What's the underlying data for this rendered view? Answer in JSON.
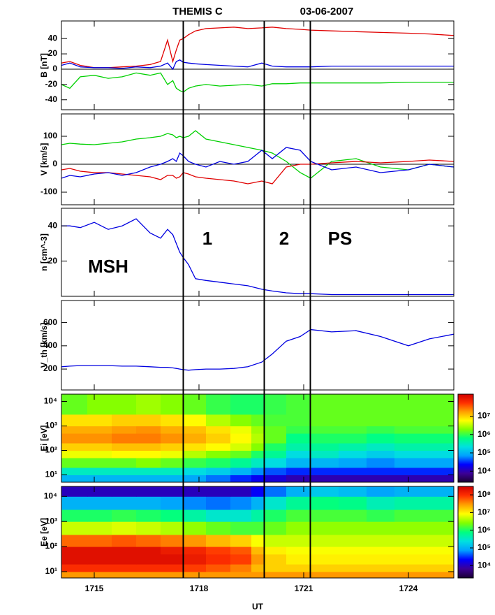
{
  "chart_data": [
    {
      "type": "line",
      "title": "THEMIS C",
      "subtitle": "03-06-2007",
      "ylabel": "B [nT]",
      "x": [
        14.06,
        14.3,
        14.6,
        15.0,
        15.4,
        15.8,
        16.2,
        16.6,
        16.9,
        17.1,
        17.25,
        17.35,
        17.45,
        17.55,
        17.7,
        17.9,
        18.2,
        18.6,
        19.0,
        19.4,
        19.8,
        20.1,
        20.5,
        20.9,
        21.2,
        21.8,
        22.5,
        23.2,
        24.0,
        24.6,
        25.3
      ],
      "xlim": [
        14.06,
        25.3
      ],
      "ylim": [
        -53,
        63
      ],
      "yticks": [
        -40,
        -20,
        0,
        20,
        40
      ],
      "zero_line": true,
      "markers": [
        17.55,
        19.87,
        21.19
      ],
      "series": [
        {
          "color": "#e00000",
          "values": [
            8,
            10,
            5,
            2,
            2,
            3,
            4,
            6,
            10,
            38,
            10,
            25,
            38,
            40,
            45,
            50,
            53,
            54,
            55,
            53,
            54,
            55,
            53,
            52,
            51,
            50,
            49,
            48,
            47,
            46,
            44
          ]
        },
        {
          "color": "#0000e0",
          "values": [
            5,
            8,
            3,
            2,
            2,
            1,
            3,
            2,
            4,
            8,
            0,
            10,
            12,
            9,
            8,
            7,
            6,
            5,
            4,
            3,
            8,
            4,
            3,
            3,
            3,
            4,
            4,
            4,
            4,
            4,
            4
          ]
        },
        {
          "color": "#00d000",
          "values": [
            -20,
            -25,
            -10,
            -8,
            -12,
            -10,
            -5,
            -8,
            -5,
            -20,
            -15,
            -25,
            -28,
            -30,
            -25,
            -22,
            -20,
            -22,
            -21,
            -20,
            -22,
            -19,
            -19,
            -18,
            -18,
            -18,
            -18,
            -18,
            -17,
            -17,
            -17
          ]
        }
      ]
    },
    {
      "type": "line",
      "ylabel": "V [km/s]",
      "x": [
        14.06,
        14.3,
        14.6,
        15.0,
        15.4,
        15.8,
        16.2,
        16.6,
        16.9,
        17.1,
        17.25,
        17.35,
        17.45,
        17.55,
        17.7,
        17.9,
        18.2,
        18.6,
        19.0,
        19.4,
        19.8,
        20.1,
        20.5,
        20.9,
        21.2,
        21.8,
        22.5,
        23.2,
        24.0,
        24.6,
        25.3
      ],
      "xlim": [
        14.06,
        25.3
      ],
      "ylim": [
        -145,
        180
      ],
      "yticks": [
        -100,
        0,
        100
      ],
      "zero_line": true,
      "series": [
        {
          "color": "#00d000",
          "values": [
            70,
            75,
            72,
            70,
            75,
            80,
            90,
            95,
            100,
            110,
            105,
            95,
            100,
            95,
            100,
            120,
            90,
            80,
            70,
            60,
            50,
            40,
            10,
            -30,
            -50,
            10,
            20,
            -10,
            -20,
            0,
            -10
          ]
        },
        {
          "color": "#e00000",
          "values": [
            -20,
            -15,
            -25,
            -30,
            -30,
            -35,
            -40,
            -45,
            -55,
            -40,
            -40,
            -50,
            -45,
            -30,
            -35,
            -45,
            -50,
            -55,
            -60,
            -70,
            -60,
            -70,
            -10,
            0,
            0,
            5,
            10,
            5,
            10,
            15,
            10
          ]
        },
        {
          "color": "#0000e0",
          "values": [
            -50,
            -40,
            -45,
            -35,
            -30,
            -40,
            -30,
            -10,
            0,
            10,
            20,
            10,
            40,
            30,
            10,
            0,
            -10,
            10,
            0,
            10,
            50,
            20,
            60,
            50,
            10,
            -20,
            -10,
            -30,
            -20,
            0,
            -10
          ]
        }
      ]
    },
    {
      "type": "line",
      "ylabel": "n [cm^-3]",
      "x": [
        14.06,
        14.3,
        14.6,
        15.0,
        15.4,
        15.8,
        16.2,
        16.6,
        16.9,
        17.1,
        17.25,
        17.35,
        17.45,
        17.55,
        17.7,
        17.9,
        18.2,
        18.6,
        19.0,
        19.4,
        19.8,
        20.1,
        20.5,
        20.9,
        21.2,
        21.8,
        22.5,
        23.2,
        24.0,
        24.6,
        25.3
      ],
      "xlim": [
        14.06,
        25.3
      ],
      "ylim": [
        0,
        50
      ],
      "yticks": [
        20,
        40
      ],
      "annotations": [
        "MSH",
        "1",
        "2",
        "PS"
      ],
      "series": [
        {
          "color": "#0000e0",
          "values": [
            40,
            40,
            39,
            42,
            38,
            40,
            44,
            36,
            33,
            38,
            35,
            30,
            25,
            22,
            18,
            10,
            9,
            8,
            7,
            6,
            4,
            3,
            2,
            1.5,
            1.5,
            1,
            1,
            1,
            1,
            1,
            1
          ]
        }
      ]
    },
    {
      "type": "line",
      "ylabel": "V_th [km/s]",
      "x": [
        14.06,
        14.3,
        14.6,
        15.0,
        15.4,
        15.8,
        16.2,
        16.6,
        16.9,
        17.1,
        17.25,
        17.35,
        17.45,
        17.55,
        17.7,
        17.9,
        18.2,
        18.6,
        19.0,
        19.4,
        19.8,
        20.1,
        20.5,
        20.9,
        21.2,
        21.8,
        22.5,
        23.2,
        24.0,
        24.6,
        25.3
      ],
      "xlim": [
        14.06,
        25.3
      ],
      "ylim": [
        20,
        790
      ],
      "yticks": [
        200,
        400,
        600
      ],
      "series": [
        {
          "color": "#0000e0",
          "values": [
            220,
            225,
            230,
            230,
            230,
            225,
            225,
            220,
            215,
            215,
            210,
            205,
            200,
            195,
            190,
            195,
            200,
            200,
            205,
            220,
            260,
            330,
            440,
            480,
            540,
            520,
            530,
            480,
            400,
            460,
            500
          ]
        }
      ]
    },
    {
      "type": "heatmap",
      "ylabel": "Ei [eV]",
      "log": true,
      "xlim": [
        14.06,
        25.3
      ],
      "ylim": [
        5,
        20000
      ],
      "yticks": [
        {
          "value": 10,
          "label": "10¹"
        },
        {
          "value": 100,
          "label": "10²"
        },
        {
          "value": 1000,
          "label": "10³"
        },
        {
          "value": 10000,
          "label": "10⁴"
        }
      ],
      "x_edges": [
        14.06,
        14.8,
        15.5,
        16.2,
        16.9,
        17.55,
        18.2,
        18.9,
        19.5,
        19.87,
        20.5,
        21.19,
        22.0,
        22.8,
        23.6,
        25.3
      ],
      "y_edges": [
        5,
        10,
        20,
        50,
        100,
        200,
        500,
        1000,
        3000,
        20000
      ],
      "clim": [
        2500,
        160000000
      ],
      "cticks": [
        {
          "value": 10000,
          "label": "10⁴"
        },
        {
          "value": 100000,
          "label": "10⁵"
        },
        {
          "value": 1000000,
          "label": "10⁶"
        },
        {
          "value": 10000000,
          "label": "10⁷"
        }
      ],
      "colormap": [
        "#1a0033",
        "#3c0096",
        "#0000ff",
        "#00a0ff",
        "#00e0e0",
        "#00ff80",
        "#80ff00",
        "#ffff00",
        "#ffa000",
        "#ff3000",
        "#d00000"
      ],
      "values": [
        [
          100000.0,
          100000.0,
          100000.0,
          100000.0,
          100000.0,
          80000.0,
          50000.0,
          30000.0,
          20000.0,
          15000.0,
          10000.0,
          10000.0,
          10000.0,
          10000.0,
          10000.0
        ],
        [
          300000.0,
          300000.0,
          300000.0,
          300000.0,
          300000.0,
          200000.0,
          150000.0,
          100000.0,
          60000.0,
          40000.0,
          30000.0,
          30000.0,
          30000.0,
          30000.0,
          30000.0
        ],
        [
          1500000.0,
          1500000.0,
          1500000.0,
          2000000.0,
          1500000.0,
          1000000.0,
          800000.0,
          500000.0,
          300000.0,
          200000.0,
          100000.0,
          100000.0,
          80000.0,
          60000.0,
          80000.0
        ],
        [
          5000000.0,
          5000000.0,
          6000000.0,
          6000000.0,
          5000000.0,
          3000000.0,
          2000000.0,
          1500000.0,
          800000.0,
          500000.0,
          200000.0,
          300000.0,
          200000.0,
          150000.0,
          200000.0
        ],
        [
          10000000.0,
          10000000.0,
          12000000.0,
          12000000.0,
          10000000.0,
          8000000.0,
          6000000.0,
          4000000.0,
          2000000.0,
          800000.0,
          400000.0,
          500000.0,
          400000.0,
          300000.0,
          400000.0
        ],
        [
          20000000.0,
          20000000.0,
          25000000.0,
          25000000.0,
          20000000.0,
          15000000.0,
          10000000.0,
          6000000.0,
          3000000.0,
          1500000.0,
          600000.0,
          800000.0,
          800000.0,
          600000.0,
          700000.0
        ],
        [
          15000000.0,
          15000000.0,
          18000000.0,
          20000000.0,
          15000000.0,
          12000000.0,
          8000000.0,
          5000000.0,
          2500000.0,
          1500000.0,
          1000000.0,
          1200000.0,
          1200000.0,
          1000000.0,
          1200000.0
        ],
        [
          8000000.0,
          8000000.0,
          10000000.0,
          10000000.0,
          8000000.0,
          6000000.0,
          3000000.0,
          2000000.0,
          1500000.0,
          1200000.0,
          1200000.0,
          1500000.0,
          1500000.0,
          1500000.0,
          1500000.0
        ],
        [
          1500000.0,
          2000000.0,
          2000000.0,
          2500000.0,
          2000000.0,
          1500000.0,
          1000000.0,
          800000.0,
          800000.0,
          1000000.0,
          1200000.0,
          1500000.0,
          1500000.0,
          1500000.0,
          1500000.0
        ]
      ]
    },
    {
      "type": "heatmap",
      "ylabel": "Ee [eV]",
      "xlabel": "UT",
      "log": true,
      "xlim": [
        14.06,
        25.3
      ],
      "ylim": [
        5.6,
        25000
      ],
      "xticks": [
        {
          "value": 15,
          "label": "1715"
        },
        {
          "value": 18,
          "label": "1718"
        },
        {
          "value": 21,
          "label": "1721"
        },
        {
          "value": 24,
          "label": "1724"
        }
      ],
      "yticks": [
        {
          "value": 10,
          "label": "10¹"
        },
        {
          "value": 100,
          "label": "10²"
        },
        {
          "value": 1000,
          "label": "10³"
        },
        {
          "value": 10000,
          "label": "10⁴"
        }
      ],
      "x_edges": [
        14.06,
        14.8,
        15.5,
        16.2,
        16.9,
        17.55,
        18.2,
        18.9,
        19.5,
        19.87,
        20.5,
        21.19,
        22.0,
        22.8,
        23.6,
        25.3
      ],
      "y_edges": [
        5.6,
        10,
        20,
        50,
        100,
        300,
        1000,
        3000,
        10000,
        25000
      ],
      "clim": [
        2000,
        300000000
      ],
      "cticks": [
        {
          "value": 10000,
          "label": "10⁴"
        },
        {
          "value": 100000,
          "label": "10⁵"
        },
        {
          "value": 1000000,
          "label": "10⁶"
        },
        {
          "value": 10000000,
          "label": "10⁷"
        },
        {
          "value": 100000000,
          "label": "10⁸"
        }
      ],
      "colormap": [
        "#1a0033",
        "#3c0096",
        "#0000ff",
        "#00a0ff",
        "#00e0e0",
        "#00ff80",
        "#80ff00",
        "#ffff00",
        "#ffa000",
        "#ff3000",
        "#d00000"
      ],
      "values": [
        [
          30000000.0,
          30000000.0,
          30000000.0,
          30000000.0,
          30000000.0,
          30000000.0,
          30000000.0,
          30000000.0,
          30000000.0,
          30000000.0,
          30000000.0,
          30000000.0,
          30000000.0,
          30000000.0,
          30000000.0
        ],
        [
          100000000.0,
          100000000.0,
          100000000.0,
          100000000.0,
          100000000.0,
          80000000.0,
          60000000.0,
          40000000.0,
          20000000.0,
          15000000.0,
          15000000.0,
          15000000.0,
          15000000.0,
          15000000.0,
          15000000.0
        ],
        [
          200000000.0,
          200000000.0,
          200000000.0,
          200000000.0,
          200000000.0,
          150000000.0,
          100000000.0,
          80000000.0,
          30000000.0,
          15000000.0,
          10000000.0,
          10000000.0,
          10000000.0,
          10000000.0,
          10000000.0
        ],
        [
          200000000.0,
          200000000.0,
          200000000.0,
          200000000.0,
          150000000.0,
          120000000.0,
          80000000.0,
          60000000.0,
          20000000.0,
          10000000.0,
          8000000.0,
          8000000.0,
          8000000.0,
          8000000.0,
          8000000.0
        ],
        [
          50000000.0,
          50000000.0,
          60000000.0,
          50000000.0,
          40000000.0,
          30000000.0,
          20000000.0,
          15000000.0,
          8000000.0,
          5000000.0,
          5000000.0,
          5000000.0,
          5000000.0,
          5000000.0,
          5000000.0
        ],
        [
          5000000.0,
          5000000.0,
          6000000.0,
          5000000.0,
          4000000.0,
          3000000.0,
          2000000.0,
          1500000.0,
          1500000.0,
          2000000.0,
          3000000.0,
          3000000.0,
          3000000.0,
          3000000.0,
          3000000.0
        ],
        [
          1000000.0,
          1000000.0,
          1200000.0,
          1000000.0,
          800000.0,
          500000.0,
          300000.0,
          300000.0,
          500000.0,
          1000000.0,
          1500000.0,
          1500000.0,
          1500000.0,
          1200000.0,
          1500000.0
        ],
        [
          100000.0,
          100000.0,
          100000.0,
          100000.0,
          80000.0,
          60000.0,
          50000.0,
          60000.0,
          100000.0,
          300000.0,
          600000.0,
          800000.0,
          700000.0,
          400000.0,
          500000.0
        ],
        [
          10000.0,
          10000.0,
          10000.0,
          10000.0,
          10000.0,
          10000.0,
          10000.0,
          10000.0,
          20000.0,
          50000.0,
          100000.0,
          150000.0,
          120000.0,
          80000.0,
          100000.0
        ]
      ]
    }
  ]
}
